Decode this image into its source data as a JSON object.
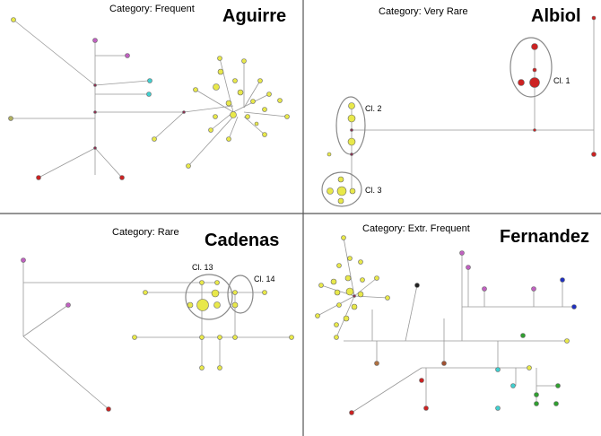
{
  "panels": [
    {
      "name": "Aguirre",
      "category": "Category: Frequent",
      "clusters": []
    },
    {
      "name": "Albiol",
      "category": "Category: Very Rare",
      "clusters": [
        "Cl. 1",
        "Cl. 2",
        "Cl. 3"
      ]
    },
    {
      "name": "Cadenas",
      "category": "Category: Rare",
      "clusters": [
        "Cl. 13",
        "Cl. 14"
      ]
    },
    {
      "name": "Fernandez",
      "category": "Category: Extr. Frequent",
      "clusters": []
    }
  ],
  "colors": {
    "yellow": "#e8e84a",
    "red": "#cc2222",
    "magenta": "#c060c0",
    "cyan": "#40d0d0",
    "green": "#30a030",
    "olive": "#b0b060",
    "dark": "#222222",
    "blue": "#2030c0",
    "brown": "#a05030",
    "edge": "#999999",
    "ellipse": "#888888"
  }
}
